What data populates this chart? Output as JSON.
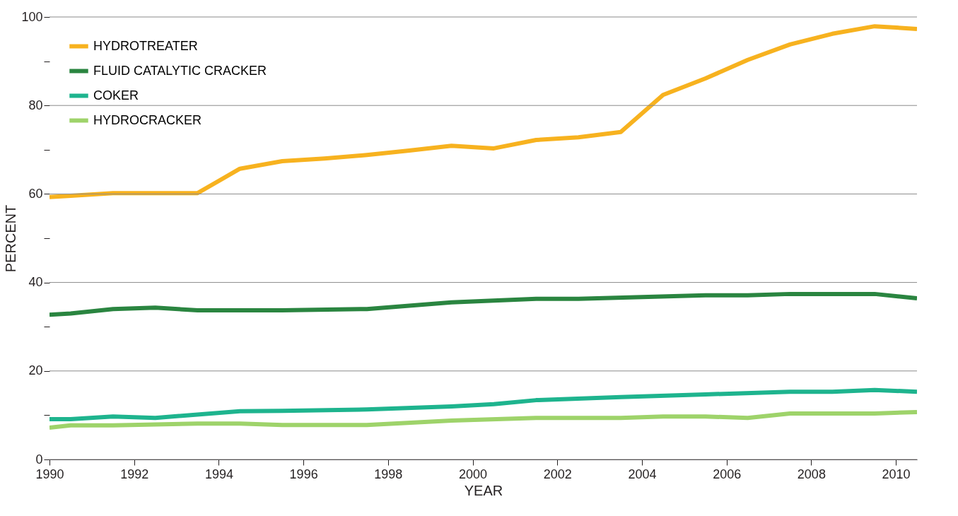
{
  "chart_data": {
    "type": "line",
    "xlabel": "YEAR",
    "ylabel": "PERCENT",
    "xlim": [
      1990,
      2010.5
    ],
    "xticks": [
      1990,
      1992,
      1994,
      1996,
      1998,
      2000,
      2002,
      2004,
      2006,
      2008,
      2010
    ],
    "ylim": [
      0,
      100
    ],
    "yticks": [
      0,
      {
        "value": 10,
        "label": null
      },
      20,
      {
        "value": 30,
        "label": null
      },
      40,
      {
        "value": 50,
        "label": null
      },
      60,
      {
        "value": 70,
        "label": null
      },
      80,
      {
        "value": 90,
        "label": null
      },
      100
    ],
    "grid": "y",
    "legend": "top left",
    "marker": "none",
    "line_style": "solid",
    "series": [
      {
        "name": "HYDROTREATER",
        "color": "#f7b21f",
        "x": [
          1990,
          1990.5,
          1991.5,
          1992.5,
          1993.5,
          1994.5,
          1995.5,
          1996.5,
          1997.5,
          1998.5,
          1999.5,
          2000.5,
          2001.5,
          2002.5,
          2003.5,
          2004.5,
          2005.5,
          2006.5,
          2007.5,
          2008.5,
          2009.5,
          2010.5
        ],
        "values": [
          59.3,
          59.6,
          60.2,
          60.2,
          60.2,
          65.7,
          67.4,
          68.0,
          68.8,
          69.8,
          70.9,
          70.3,
          72.2,
          72.8,
          74.0,
          82.4,
          86.1,
          90.3,
          93.8,
          96.2,
          97.9,
          97.3
        ]
      },
      {
        "name": "FLUID CATALYTIC CRACKER",
        "color": "#2a8540",
        "x": [
          1990,
          1990.5,
          1991.5,
          1992.5,
          1993.5,
          1995.5,
          1997.5,
          1999.5,
          2001.5,
          2002.5,
          2005.5,
          2006.5,
          2007.5,
          2009.5,
          2010.5
        ],
        "values": [
          32.7,
          33.0,
          34.0,
          34.3,
          33.7,
          33.7,
          34.0,
          35.5,
          36.3,
          36.3,
          37.1,
          37.1,
          37.4,
          37.4,
          36.4
        ]
      },
      {
        "name": "COKER",
        "color": "#1eb48e",
        "x": [
          1990,
          1990.5,
          1991.5,
          1992.5,
          1994.5,
          1995.5,
          1997.5,
          1999.5,
          2000.5,
          2001.5,
          2003.5,
          2005.5,
          2007.5,
          2008.5,
          2009.5,
          2010.5
        ],
        "values": [
          9.1,
          9.1,
          9.7,
          9.4,
          10.9,
          11.0,
          11.3,
          12.0,
          12.5,
          13.4,
          14.1,
          14.7,
          15.3,
          15.3,
          15.7,
          15.3
        ]
      },
      {
        "name": "HYDROCRACKER",
        "color": "#9ed36a",
        "x": [
          1990,
          1990.5,
          1991.5,
          1993.5,
          1994.5,
          1995.5,
          1997.5,
          1999.5,
          2001.5,
          2003.5,
          2004.5,
          2005.5,
          2006.5,
          2007.5,
          2009.5,
          2010.5
        ],
        "values": [
          7.2,
          7.7,
          7.7,
          8.1,
          8.1,
          7.8,
          7.8,
          8.8,
          9.4,
          9.4,
          9.7,
          9.7,
          9.4,
          10.4,
          10.4,
          10.7
        ]
      }
    ]
  }
}
